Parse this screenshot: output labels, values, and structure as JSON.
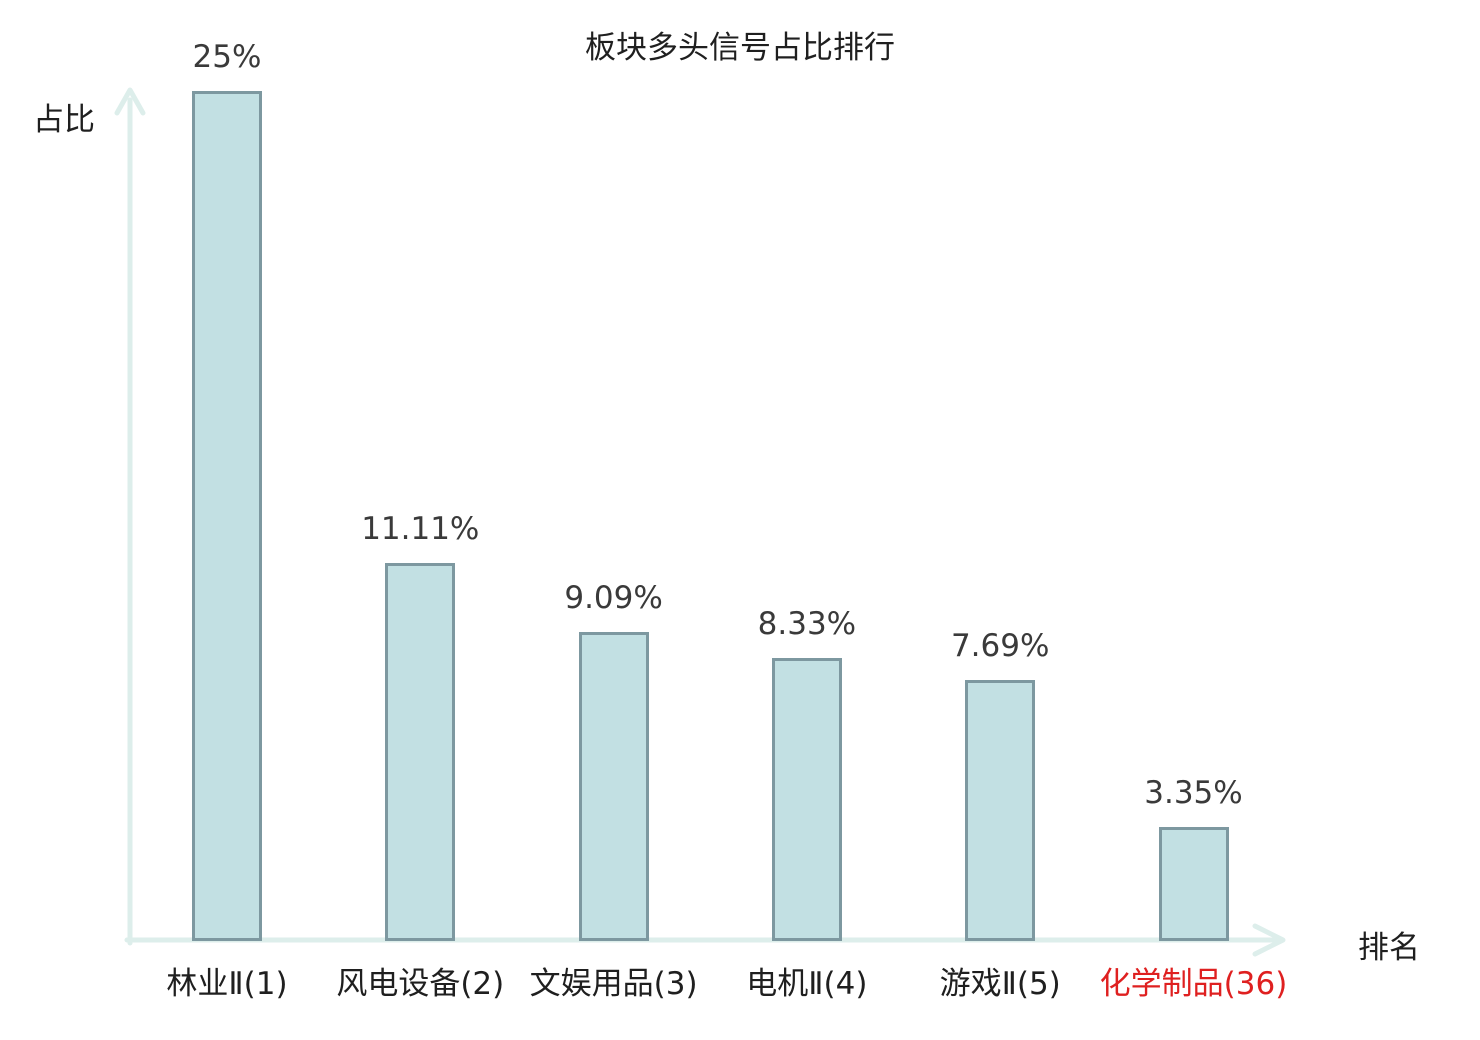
{
  "title": "板块多头信号占比排行",
  "axes": {
    "y_label": "占比",
    "x_label": "排名"
  },
  "colors": {
    "bar_fill": "#c2e0e3",
    "bar_border": "#7d98a0",
    "axis": "#ddeeeb",
    "value_label": "#3a3a3a",
    "text": "#1f1f1f",
    "highlight": "#df2020"
  },
  "chart_data": {
    "type": "bar",
    "title": "板块多头信号占比排行",
    "xlabel": "排名",
    "ylabel": "占比",
    "categories": [
      "林业Ⅱ(1)",
      "风电设备(2)",
      "文娱用品(3)",
      "电机Ⅱ(4)",
      "游戏Ⅱ(5)",
      "化学制品(36)"
    ],
    "values": [
      25,
      11.11,
      9.09,
      8.33,
      7.69,
      3.35
    ],
    "value_labels": [
      "25%",
      "11.11%",
      "9.09%",
      "8.33%",
      "7.69%",
      "3.35%"
    ],
    "highlighted_category_index": 5,
    "ylim": [
      0,
      25.5
    ],
    "grid": false,
    "legend": "none"
  }
}
